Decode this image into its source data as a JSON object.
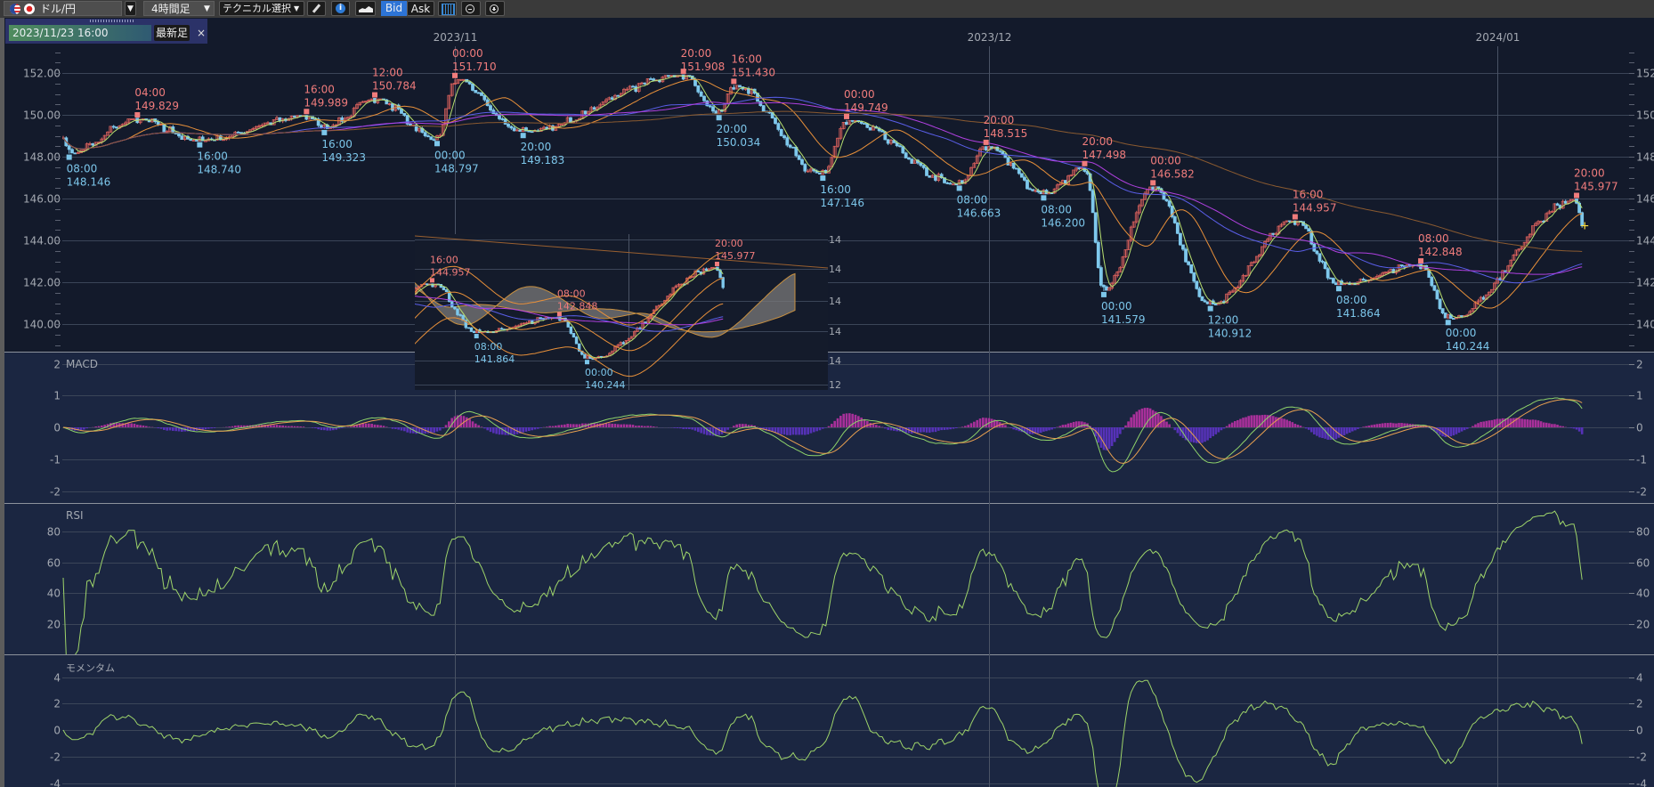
{
  "toolbar": {
    "symbol": "ドル/円",
    "timeframe": "4時間足",
    "technical": "テクニカル選択",
    "bid": "Bid",
    "ask": "Ask",
    "active_price": "Bid",
    "accent": "#2d74d6"
  },
  "date_box": {
    "value": "2023/11/23 16:00",
    "latest_button": "最新足",
    "close": "×"
  },
  "chart_data": [
    {
      "type": "candlestick",
      "symbol": "ドル/円",
      "x_ticks": [
        {
          "label": "2023/11",
          "date": "2023-11-01"
        },
        {
          "label": "2023/12",
          "date": "2023-12-01"
        },
        {
          "label": "2024/01",
          "date": "2024-01-01"
        }
      ],
      "y_ticks_left": [
        "152.00",
        "150.00",
        "148.00",
        "146.00",
        "144.00",
        "142.00",
        "140.00"
      ],
      "y_ticks_right": [
        "152.00",
        "150.00",
        "148.00",
        "146.00",
        "144.00",
        "142.00",
        "140.00"
      ],
      "ylim": [
        138.5,
        153.5
      ],
      "grid": true,
      "up_color": "#d9605c",
      "down_color": "#7ec8ec",
      "moving_average_colors": [
        "#b8e070",
        "#e8903a",
        "#5a5ee8",
        "#b040e0",
        "#8a5a30"
      ],
      "annotations": [
        {
          "type": "low",
          "time": "08:00",
          "price": "148.146",
          "date": "2023-10-10 08:00"
        },
        {
          "type": "high",
          "time": "04:00",
          "price": "149.829",
          "date": "2023-10-14 04:00"
        },
        {
          "type": "low",
          "time": "16:00",
          "price": "148.740",
          "date": "2023-10-17 16:00"
        },
        {
          "type": "high",
          "time": "16:00",
          "price": "149.989",
          "date": "2023-10-23 16:00"
        },
        {
          "type": "low",
          "time": "16:00",
          "price": "149.323",
          "date": "2023-10-24 16:00"
        },
        {
          "type": "high",
          "time": "12:00",
          "price": "150.784",
          "date": "2023-10-27 12:00"
        },
        {
          "type": "low",
          "time": "00:00",
          "price": "148.797",
          "date": "2023-10-31 00:00"
        },
        {
          "type": "high",
          "time": "00:00",
          "price": "151.710",
          "date": "2023-11-01 00:00"
        },
        {
          "type": "low",
          "time": "20:00",
          "price": "149.183",
          "date": "2023-11-04 20:00"
        },
        {
          "type": "high",
          "time": "20:00",
          "price": "151.908",
          "date": "2023-11-13 20:00"
        },
        {
          "type": "low",
          "time": "20:00",
          "price": "150.034",
          "date": "2023-11-15 20:00"
        },
        {
          "type": "high",
          "time": "16:00",
          "price": "151.430",
          "date": "2023-11-16 16:00"
        },
        {
          "type": "low",
          "time": "16:00",
          "price": "147.146",
          "date": "2023-11-21 16:00"
        },
        {
          "type": "high",
          "time": "00:00",
          "price": "149.749",
          "date": "2023-11-23 00:00"
        },
        {
          "type": "low",
          "time": "08:00",
          "price": "146.663",
          "date": "2023-11-29 08:00"
        },
        {
          "type": "high",
          "time": "20:00",
          "price": "148.515",
          "date": "2023-11-30 20:00"
        },
        {
          "type": "low",
          "time": "08:00",
          "price": "146.200",
          "date": "2023-12-04 08:00"
        },
        {
          "type": "high",
          "time": "20:00",
          "price": "147.498",
          "date": "2023-12-06 20:00"
        },
        {
          "type": "low",
          "time": "00:00",
          "price": "141.579",
          "date": "2023-12-08 00:00"
        },
        {
          "type": "high",
          "time": "00:00",
          "price": "146.582",
          "date": "2023-12-11 00:00"
        },
        {
          "type": "low",
          "time": "12:00",
          "price": "140.912",
          "date": "2023-12-14 12:00"
        },
        {
          "type": "high",
          "time": "16:00",
          "price": "144.957",
          "date": "2023-12-19 16:00"
        },
        {
          "type": "low",
          "time": "08:00",
          "price": "141.864",
          "date": "2023-12-22 08:00"
        },
        {
          "type": "high",
          "time": "08:00",
          "price": "142.848",
          "date": "2023-12-27 08:00"
        },
        {
          "type": "low",
          "time": "00:00",
          "price": "140.244",
          "date": "2023-12-29 00:00"
        },
        {
          "type": "high",
          "time": "20:00",
          "price": "145.977",
          "date": "2024-01-05 20:00"
        }
      ],
      "start": {
        "date": "2023-10-10 00:00",
        "price": 148.9
      },
      "end": {
        "date": "2024-01-06 04:00",
        "price": 144.7
      }
    },
    {
      "type": "line",
      "title": "MACD",
      "y_ticks_left": [
        "2",
        "1",
        "0",
        "-1",
        "-2"
      ],
      "y_ticks_right": [
        "2",
        "1",
        "0",
        "-1",
        "-2"
      ],
      "ylim": [
        -2.4,
        2.4
      ],
      "colors": {
        "macd": "#8fd36a",
        "signal": "#e8a050",
        "hist_pos": "#a8309a",
        "hist_neg": "#5632b8"
      }
    },
    {
      "type": "line",
      "title": "RSI",
      "y_ticks_left": [
        "80",
        "60",
        "40",
        "20"
      ],
      "y_ticks_right": [
        "80",
        "60",
        "40",
        "20"
      ],
      "ylim": [
        0,
        100
      ],
      "colors": {
        "rsi": "#9ed46a"
      }
    },
    {
      "type": "line",
      "title": "モメンタム",
      "y_ticks_left": [
        "4",
        "2",
        "0",
        "-2",
        "-4"
      ],
      "y_ticks_right": [
        "4",
        "2",
        "0",
        "-2",
        "-4"
      ],
      "ylim": [
        -4.3,
        5
      ],
      "colors": {
        "momentum": "#9ed46a"
      }
    }
  ],
  "inset": {
    "axis_labels": [
      "14",
      "14",
      "14",
      "14",
      "14",
      "12"
    ],
    "annotation_refs": [
      21,
      22,
      23,
      24,
      25
    ]
  }
}
